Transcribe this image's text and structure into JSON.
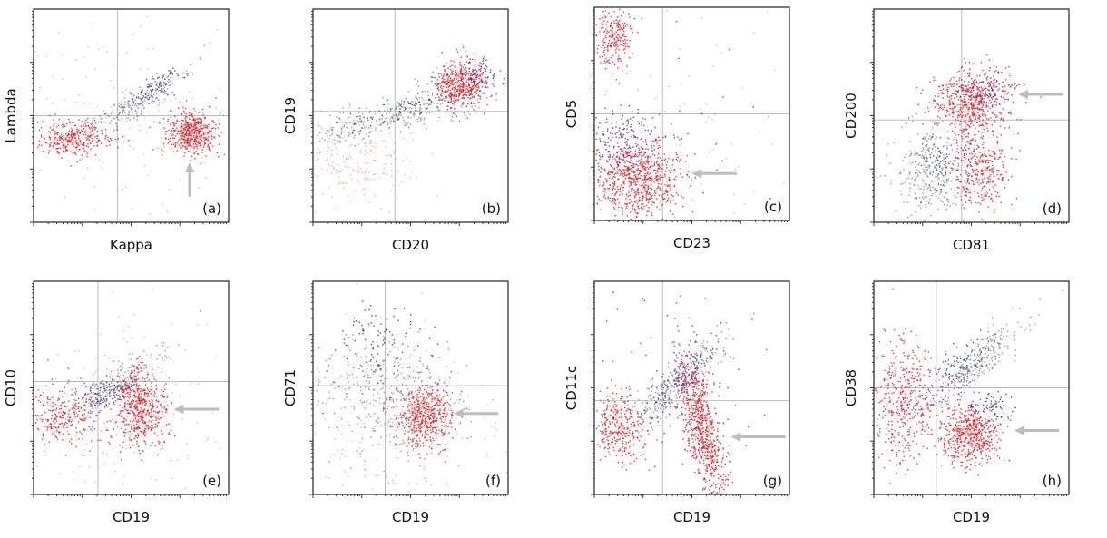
{
  "panels": [
    {
      "label": "(a)",
      "x_label": "Kappa",
      "y_label": "Lambda"
    },
    {
      "label": "(b)",
      "x_label": "CD20",
      "y_label": "CD19"
    },
    {
      "label": "(c)",
      "x_label": "CD23",
      "y_label": "CD5"
    },
    {
      "label": "(d)",
      "x_label": "CD81",
      "y_label": "CD200"
    },
    {
      "label": "(e)",
      "x_label": "CD19",
      "y_label": "CD10"
    },
    {
      "label": "(f)",
      "x_label": "CD19",
      "y_label": "CD71"
    },
    {
      "label": "(g)",
      "x_label": "CD19",
      "y_label": "CD11c"
    },
    {
      "label": "(h)",
      "x_label": "CD19",
      "y_label": "CD38"
    }
  ]
}
